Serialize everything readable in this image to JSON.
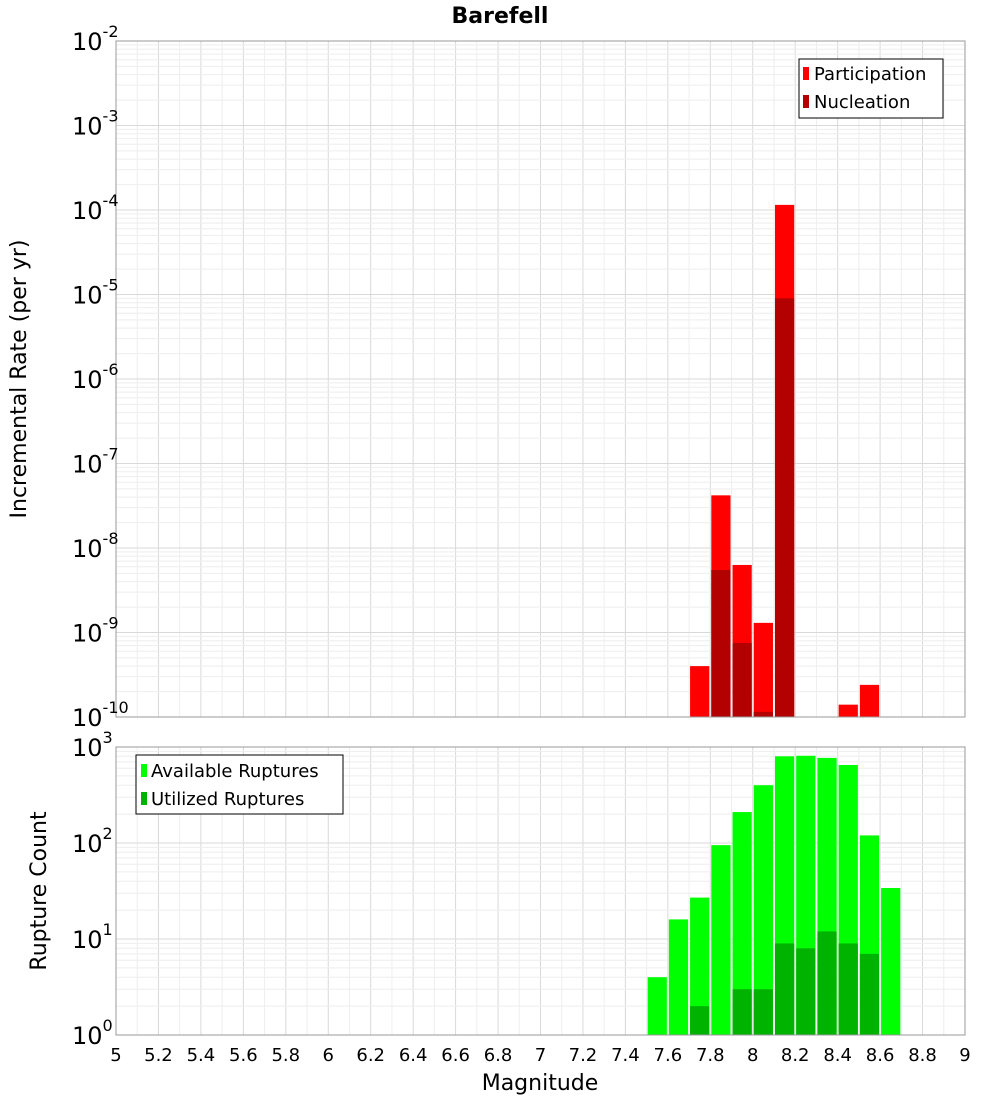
{
  "chart_data": [
    {
      "type": "bar",
      "title": "Barefell",
      "ylabel": "Incremental Rate (per yr)",
      "xlabel": "",
      "yscale": "log",
      "ylim_exponents": [
        -10,
        -2
      ],
      "xlim": [
        5,
        9
      ],
      "grid": true,
      "legend_position": "top-right",
      "bin_width": 0.1,
      "series": [
        {
          "name": "Participation",
          "color": "#ff0000",
          "x": [
            7.75,
            7.85,
            7.95,
            8.05,
            8.15,
            8.45,
            8.55
          ],
          "values": [
            4e-10,
            4.2e-08,
            6.3e-09,
            1.3e-09,
            0.000115,
            1.4e-10,
            2.4e-10
          ]
        },
        {
          "name": "Nucleation",
          "color": "#b30000",
          "x": [
            7.85,
            7.95,
            8.05,
            8.15
          ],
          "values": [
            5.5e-09,
            7.5e-10,
            1.15e-10,
            9e-06
          ]
        }
      ]
    },
    {
      "type": "bar",
      "title": "",
      "ylabel": "Rupture Count",
      "xlabel": "Magnitude",
      "yscale": "log",
      "ylim_exponents": [
        0,
        3
      ],
      "xlim": [
        5,
        9
      ],
      "grid": true,
      "legend_position": "top-left",
      "bin_width": 0.1,
      "x_ticks": [
        "5",
        "5.2",
        "5.4",
        "5.6",
        "5.8",
        "6",
        "6.2",
        "6.4",
        "6.6",
        "6.8",
        "7",
        "7.2",
        "7.4",
        "7.6",
        "7.8",
        "8",
        "8.2",
        "8.4",
        "8.6",
        "8.8",
        "9"
      ],
      "series": [
        {
          "name": "Available Ruptures",
          "color": "#00ff00",
          "x": [
            7.05,
            7.45,
            7.55,
            7.65,
            7.75,
            7.85,
            7.95,
            8.05,
            8.15,
            8.25,
            8.35,
            8.45,
            8.55,
            8.65
          ],
          "values": [
            1,
            1,
            4,
            16,
            27,
            95,
            210,
            400,
            800,
            810,
            770,
            650,
            120,
            34
          ]
        },
        {
          "name": "Utilized Ruptures",
          "color": "#00b300",
          "x": [
            7.75,
            7.85,
            7.95,
            8.05,
            8.15,
            8.25,
            8.35,
            8.45,
            8.55
          ],
          "values": [
            2,
            1,
            3,
            3,
            9,
            8,
            12,
            9,
            7
          ]
        }
      ]
    }
  ]
}
